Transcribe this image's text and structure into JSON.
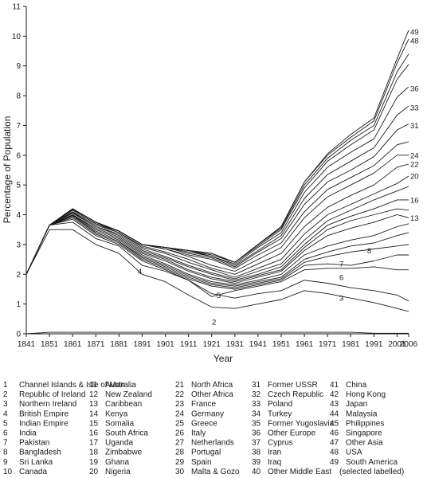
{
  "chart_data": {
    "type": "line",
    "title": "",
    "xlabel": "Year",
    "ylabel": "Percentage  of  Population",
    "x": [
      1841,
      1851,
      1861,
      1871,
      1881,
      1891,
      1901,
      1911,
      1921,
      1931,
      1941,
      1951,
      1961,
      1971,
      1981,
      1991,
      2001,
      2006
    ],
    "xlim": [
      1841,
      2006
    ],
    "ylim": [
      0,
      11
    ],
    "yticks": [
      0,
      1,
      2,
      3,
      4,
      5,
      6,
      7,
      8,
      9,
      10,
      11
    ],
    "grid": false,
    "legend_position": "below chart",
    "series": [
      {
        "name": "1",
        "values": [
          0,
          0.05,
          0.05,
          0.05,
          0.05,
          0.05,
          0.05,
          0.05,
          0.05,
          0.05,
          0.05,
          0.05,
          0.05,
          0.05,
          0.05,
          0.02,
          0.02,
          0.02
        ]
      },
      {
        "name": "3",
        "values": [
          2,
          3.5,
          3.5,
          3.0,
          2.7,
          2.0,
          1.75,
          1.3,
          0.9,
          0.85,
          1.0,
          1.15,
          1.45,
          1.35,
          1.2,
          1.05,
          0.85,
          0.75
        ]
      },
      {
        "name": "4",
        "values": [
          2,
          3.65,
          3.75,
          3.2,
          2.95,
          2.3,
          2.1,
          1.8,
          1.35,
          1.2,
          1.35,
          1.45,
          1.8,
          1.7,
          1.55,
          1.45,
          1.3,
          1.1
        ]
      },
      {
        "name": "5",
        "values": [
          2,
          3.65,
          3.85,
          3.3,
          3.0,
          2.45,
          2.15,
          1.8,
          1.25,
          1.45,
          1.6,
          1.75,
          2.15,
          2.2,
          2.2,
          2.25,
          2.15,
          2.15
        ]
      },
      {
        "name": "6",
        "values": [
          2,
          3.65,
          3.9,
          3.35,
          3.05,
          2.5,
          2.2,
          1.85,
          1.6,
          1.5,
          1.65,
          1.8,
          2.3,
          2.35,
          2.3,
          2.45,
          2.65,
          2.65
        ]
      },
      {
        "name": "7",
        "values": [
          2,
          3.65,
          3.95,
          3.4,
          3.1,
          2.55,
          2.25,
          1.9,
          1.65,
          1.55,
          1.7,
          1.85,
          2.4,
          2.6,
          2.75,
          2.85,
          2.95,
          3.0
        ]
      },
      {
        "name": "8",
        "values": [
          2,
          3.65,
          3.95,
          3.4,
          3.1,
          2.6,
          2.3,
          1.95,
          1.7,
          1.6,
          1.75,
          1.9,
          2.5,
          2.75,
          2.95,
          3.05,
          3.3,
          3.4
        ]
      },
      {
        "name": "10",
        "values": [
          2,
          3.65,
          3.98,
          3.45,
          3.15,
          2.65,
          2.35,
          2.0,
          1.75,
          1.65,
          1.8,
          2.0,
          2.65,
          2.95,
          3.15,
          3.3,
          3.6,
          3.7
        ]
      },
      {
        "name": "13",
        "values": [
          2,
          3.65,
          4.0,
          3.5,
          3.2,
          2.7,
          2.45,
          2.1,
          1.85,
          1.7,
          1.9,
          2.1,
          2.8,
          3.3,
          3.55,
          3.75,
          4.0,
          3.9
        ]
      },
      {
        "name": "14",
        "values": [
          2,
          3.65,
          4.0,
          3.55,
          3.25,
          2.75,
          2.5,
          2.15,
          1.9,
          1.75,
          1.95,
          2.15,
          2.9,
          3.5,
          3.8,
          4.0,
          4.2,
          4.15
        ]
      },
      {
        "name": "16",
        "values": [
          2,
          3.65,
          4.05,
          3.6,
          3.3,
          2.8,
          2.55,
          2.25,
          2.0,
          1.8,
          2.0,
          2.25,
          3.0,
          3.65,
          3.95,
          4.2,
          4.5,
          4.5
        ]
      },
      {
        "name": "18",
        "values": [
          2,
          3.65,
          4.08,
          3.6,
          3.35,
          2.85,
          2.6,
          2.3,
          2.05,
          1.85,
          2.1,
          2.35,
          3.15,
          3.8,
          4.15,
          4.5,
          4.8,
          4.95
        ]
      },
      {
        "name": "20",
        "values": [
          2,
          3.65,
          4.1,
          3.65,
          3.4,
          2.9,
          2.7,
          2.4,
          2.15,
          1.9,
          2.2,
          2.5,
          3.35,
          4.0,
          4.35,
          4.7,
          5.05,
          5.3
        ]
      },
      {
        "name": "22",
        "values": [
          2,
          3.65,
          4.15,
          3.7,
          3.4,
          2.95,
          2.75,
          2.5,
          2.2,
          2.0,
          2.35,
          2.7,
          3.6,
          4.25,
          4.65,
          5.0,
          5.6,
          5.7
        ]
      },
      {
        "name": "24",
        "values": [
          2,
          3.65,
          4.15,
          3.7,
          3.45,
          3.0,
          2.85,
          2.6,
          2.3,
          2.1,
          2.5,
          2.9,
          3.9,
          4.6,
          5.0,
          5.4,
          6.0,
          6.0
        ]
      },
      {
        "name": "28",
        "values": [
          2,
          3.65,
          4.18,
          3.75,
          3.45,
          3.0,
          2.85,
          2.65,
          2.5,
          2.2,
          2.65,
          3.05,
          4.1,
          4.85,
          5.25,
          5.65,
          6.35,
          6.45
        ]
      },
      {
        "name": "31",
        "values": [
          2,
          3.65,
          4.2,
          3.75,
          3.45,
          3.0,
          2.9,
          2.7,
          2.55,
          2.25,
          2.75,
          3.2,
          4.35,
          5.1,
          5.5,
          5.95,
          6.85,
          7.05
        ]
      },
      {
        "name": "33",
        "values": [
          2,
          3.65,
          4.2,
          3.75,
          3.45,
          3.0,
          2.9,
          2.75,
          2.6,
          2.3,
          2.8,
          3.3,
          4.55,
          5.35,
          5.8,
          6.25,
          7.35,
          7.65
        ]
      },
      {
        "name": "36",
        "values": [
          2,
          3.65,
          4.2,
          3.75,
          3.45,
          3.0,
          2.9,
          2.8,
          2.6,
          2.35,
          2.9,
          3.4,
          4.75,
          5.6,
          6.1,
          6.55,
          7.95,
          8.3
        ]
      },
      {
        "name": "42",
        "values": [
          2,
          3.65,
          4.2,
          3.75,
          3.45,
          3.0,
          2.9,
          2.8,
          2.65,
          2.4,
          2.95,
          3.5,
          4.9,
          5.8,
          6.35,
          6.85,
          8.55,
          9.05
        ]
      },
      {
        "name": "45",
        "values": [
          2,
          3.65,
          4.2,
          3.75,
          3.45,
          3.0,
          2.9,
          2.8,
          2.7,
          2.4,
          3.0,
          3.55,
          5.0,
          5.9,
          6.5,
          7.0,
          8.8,
          9.4
        ]
      },
      {
        "name": "48",
        "values": [
          2,
          3.65,
          4.2,
          3.75,
          3.45,
          3.0,
          2.9,
          2.8,
          2.7,
          2.4,
          3.0,
          3.6,
          5.1,
          6.0,
          6.6,
          7.15,
          9.1,
          9.9
        ]
      },
      {
        "name": "49",
        "values": [
          2,
          3.65,
          4.2,
          3.75,
          3.45,
          3.0,
          2.9,
          2.8,
          2.7,
          2.4,
          3.0,
          3.6,
          5.1,
          6.05,
          6.7,
          7.25,
          9.25,
          10.2
        ]
      }
    ],
    "line_labels": [
      {
        "text": "49",
        "x": 2006,
        "y": 10.15
      },
      {
        "text": "48",
        "x": 2006,
        "y": 9.85
      },
      {
        "text": "36",
        "x": 2006,
        "y": 8.25
      },
      {
        "text": "33",
        "x": 2006,
        "y": 7.6
      },
      {
        "text": "31",
        "x": 2006,
        "y": 7.0
      },
      {
        "text": "24",
        "x": 2006,
        "y": 6.0
      },
      {
        "text": "22",
        "x": 2006,
        "y": 5.7
      },
      {
        "text": "20",
        "x": 2006,
        "y": 5.3
      },
      {
        "text": "16",
        "x": 2006,
        "y": 4.5
      },
      {
        "text": "13",
        "x": 2006,
        "y": 3.9
      },
      {
        "text": "8",
        "x": 1989,
        "y": 2.8
      },
      {
        "text": "7",
        "x": 1977,
        "y": 2.35
      },
      {
        "text": "6",
        "x": 1977,
        "y": 1.9
      },
      {
        "text": "3",
        "x": 1977,
        "y": 1.2
      },
      {
        "text": "4",
        "x": 1890,
        "y": 2.1
      },
      {
        "text": "5",
        "x": 1924,
        "y": 1.3
      },
      {
        "text": "2",
        "x": 1922,
        "y": 0.4
      }
    ],
    "legend_columns": [
      [
        "1   Channel Islands & Isle of Man",
        "2   Republic of Ireland",
        "3   Northern Ireland",
        "4   British Empire",
        "5   Indian Empire",
        "6   India",
        "7   Pakistan",
        "8   Bangladesh",
        "9   Sri Lanka",
        "10  Canada"
      ],
      [
        "11   Australia",
        "12   New Zealand",
        "13   Caribbean",
        "14   Kenya",
        "15   Somalia",
        "16   South Africa",
        "17   Uganda",
        "18   Zimbabwe",
        "19   Ghana",
        "20   Nigeria"
      ],
      [
        "21   North Africa",
        "22   Other Africa",
        "23   France",
        "24   Germany",
        "25   Greece",
        "26   Italy",
        "27   Netherlands",
        "28   Portugal",
        "29   Spain",
        "30   Malta & Gozo"
      ],
      [
        "31   Former USSR",
        "32   Czech Republic",
        "33   Poland",
        "34   Turkey",
        "35   Former Yugoslavia",
        "36   Other Europe",
        "37   Cyprus",
        "38   Iran",
        "39   Iraq",
        "40   Other Middle East"
      ],
      [
        "41   China",
        "42   Hong Kong",
        "43   Japan",
        "44   Malaysia",
        "45   Philippines",
        "46   Singapore",
        "47   Other Asia",
        "48   USA",
        "49   South America",
        "(selected labelled)"
      ]
    ]
  }
}
